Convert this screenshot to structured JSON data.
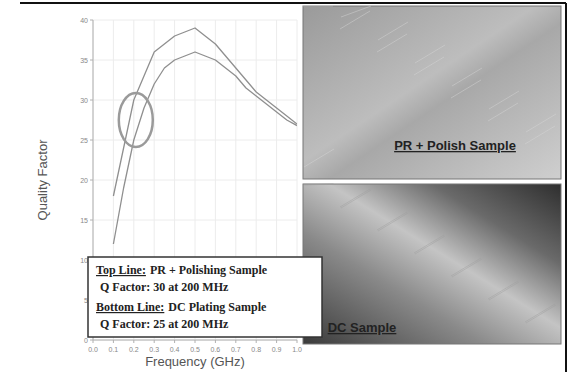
{
  "chart_data": {
    "type": "line",
    "x_label": "Frequency (GHz)",
    "y_label": "Quality Factor",
    "x": [
      0.1,
      0.15,
      0.2,
      0.25,
      0.3,
      0.35,
      0.4,
      0.45,
      0.5,
      0.55,
      0.6,
      0.65,
      0.7,
      0.75,
      0.8,
      0.85,
      0.9,
      0.95,
      1.0
    ],
    "series": [
      {
        "name": "PR + Polishing Sample",
        "color": "#8f8f8f",
        "values": [
          18,
          24,
          30,
          33,
          36,
          37,
          38,
          38.5,
          39,
          38,
          37,
          35.5,
          34,
          32.5,
          31,
          30,
          29,
          28,
          27
        ]
      },
      {
        "name": "DC Plating Sample",
        "color": "#8f8f8f",
        "values": [
          12,
          19,
          25,
          29,
          32,
          34,
          35,
          35.5,
          36,
          35.5,
          35,
          34,
          33,
          31.5,
          30.5,
          29.5,
          28.5,
          27.5,
          26.8
        ]
      }
    ],
    "xlim": [
      0,
      1
    ],
    "xticks": [
      {
        "value": 0,
        "label": "0.0"
      },
      0.1,
      0.2,
      0.3,
      0.4,
      0.5,
      0.6,
      0.7,
      0.8,
      0.9,
      {
        "value": 1,
        "label": "1.0"
      }
    ],
    "ylim": [
      0,
      40
    ],
    "yticks": [
      0,
      5,
      10,
      15,
      20,
      25,
      30,
      35,
      40
    ],
    "grid": true,
    "annotations": [
      "Top Line:",
      "Q Factor: 30 at 200 MHz",
      "Bottom Line:",
      "Q Factor: 25 at 200 MHz"
    ]
  },
  "images": [
    {
      "caption": "PR + Polish Sample"
    },
    {
      "caption": "DC Sample"
    }
  ]
}
